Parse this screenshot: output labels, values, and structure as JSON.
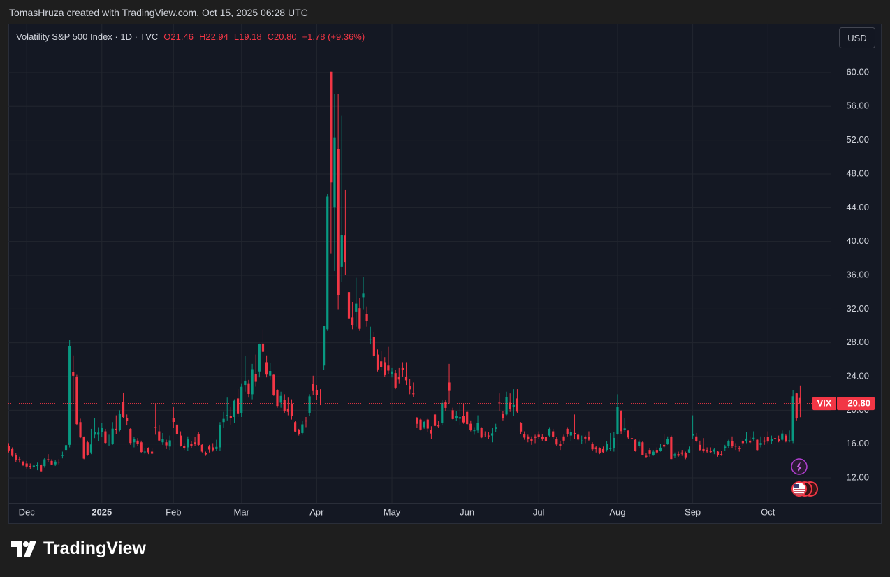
{
  "credit": "TomasHruza created with TradingView.com, Oct 15, 2025 06:28 UTC",
  "brand": "TradingView",
  "currency": "USD",
  "chart_data": {
    "type": "candlestick",
    "title": "Volatility S&P 500 Index · 1D · TVC",
    "legend_values": [
      "O21.46",
      "H22.94",
      "L19.18",
      "C20.80",
      "+1.78 (+9.36%)"
    ],
    "price_tag": {
      "symbol": "VIX",
      "label": "20.80"
    },
    "up_color": "#089981",
    "down_color": "#f23645",
    "grid": true,
    "ylim": [
      9.02,
      65.46
    ],
    "yticks": [
      {
        "value": 12,
        "label": "12.00"
      },
      {
        "value": 16,
        "label": "16.00"
      },
      {
        "value": 20,
        "label": "20.00"
      },
      {
        "value": 24,
        "label": "24.00"
      },
      {
        "value": 28,
        "label": "28.00"
      },
      {
        "value": 32,
        "label": "32.00"
      },
      {
        "value": 36,
        "label": "36.00"
      },
      {
        "value": 40,
        "label": "40.00"
      },
      {
        "value": 44,
        "label": "44.00"
      },
      {
        "value": 48,
        "label": "48.00"
      },
      {
        "value": 52,
        "label": "52.00"
      },
      {
        "value": 56,
        "label": "56.00"
      },
      {
        "value": 60,
        "label": "60.00"
      }
    ],
    "xlim": [
      -0.1,
      229.7
    ],
    "xticks": [
      {
        "value": 5,
        "label": "Dec"
      },
      {
        "value": 26,
        "label": "2025"
      },
      {
        "value": 46,
        "label": "Feb"
      },
      {
        "value": 65,
        "label": "Mar"
      },
      {
        "value": 86,
        "label": "Apr"
      },
      {
        "value": 107,
        "label": "May"
      },
      {
        "value": 128,
        "label": "Jun"
      },
      {
        "value": 148,
        "label": "Jul"
      },
      {
        "value": 170,
        "label": "Aug"
      },
      {
        "value": 191,
        "label": "Sep"
      },
      {
        "value": 212,
        "label": "Oct"
      }
    ],
    "candles": [
      [
        15.8,
        16.1,
        15.0,
        15.24
      ],
      [
        15.4,
        15.6,
        14.5,
        14.6
      ],
      [
        14.7,
        14.9,
        13.9,
        14.1
      ],
      [
        14.2,
        14.5,
        13.8,
        14.1
      ],
      [
        13.9,
        14.0,
        13.4,
        13.51
      ],
      [
        13.7,
        14.0,
        13.1,
        13.34
      ],
      [
        13.4,
        13.7,
        13.0,
        13.3
      ],
      [
        13.3,
        13.6,
        13.0,
        13.45
      ],
      [
        13.4,
        13.8,
        12.9,
        13.54
      ],
      [
        13.5,
        13.7,
        12.7,
        12.77
      ],
      [
        13.4,
        14.4,
        13.2,
        14.19
      ],
      [
        14.2,
        14.8,
        13.9,
        14.18
      ],
      [
        14.0,
        14.2,
        13.5,
        13.58
      ],
      [
        13.6,
        14.1,
        13.4,
        13.92
      ],
      [
        13.9,
        14.2,
        13.6,
        13.81
      ],
      [
        14.6,
        15.1,
        14.3,
        14.69
      ],
      [
        15.3,
        16.2,
        14.9,
        15.87
      ],
      [
        15.9,
        28.3,
        15.6,
        27.62
      ],
      [
        24.5,
        26.5,
        21.0,
        24.09
      ],
      [
        24.0,
        24.2,
        18.2,
        18.36
      ],
      [
        18.6,
        19.0,
        16.7,
        16.78
      ],
      [
        16.8,
        16.9,
        14.2,
        14.27
      ],
      [
        16.2,
        16.4,
        14.6,
        14.73
      ],
      [
        15.0,
        17.8,
        14.8,
        15.95
      ],
      [
        17.1,
        19.1,
        16.7,
        17.4
      ],
      [
        17.1,
        18.0,
        16.3,
        17.35
      ],
      [
        17.4,
        18.5,
        16.8,
        17.93
      ],
      [
        17.5,
        17.8,
        16.0,
        16.13
      ],
      [
        16.0,
        17.1,
        15.8,
        16.04
      ],
      [
        16.0,
        18.6,
        15.9,
        17.82
      ],
      [
        17.8,
        19.4,
        17.2,
        17.7
      ],
      [
        17.7,
        20.0,
        17.5,
        19.54
      ],
      [
        21.0,
        22.1,
        19.1,
        19.19
      ],
      [
        19.1,
        19.5,
        18.2,
        18.71
      ],
      [
        17.8,
        17.9,
        15.9,
        16.12
      ],
      [
        16.2,
        16.8,
        15.6,
        16.6
      ],
      [
        16.4,
        16.7,
        15.8,
        15.97
      ],
      [
        16.2,
        16.4,
        14.9,
        15.06
      ],
      [
        15.1,
        15.5,
        14.8,
        15.1
      ],
      [
        15.5,
        15.6,
        14.8,
        15.02
      ],
      [
        15.1,
        15.5,
        14.8,
        14.85
      ],
      [
        18.0,
        20.8,
        17.1,
        17.9
      ],
      [
        17.5,
        18.2,
        16.3,
        16.41
      ],
      [
        16.2,
        17.3,
        15.9,
        16.56
      ],
      [
        16.2,
        16.5,
        15.4,
        15.84
      ],
      [
        15.7,
        17.0,
        15.3,
        16.43
      ],
      [
        19.1,
        20.4,
        17.9,
        18.62
      ],
      [
        18.3,
        18.4,
        17.0,
        17.21
      ],
      [
        17.0,
        17.5,
        15.7,
        15.77
      ],
      [
        15.8,
        16.1,
        15.3,
        15.5
      ],
      [
        15.6,
        16.9,
        15.2,
        16.54
      ],
      [
        16.0,
        16.3,
        15.5,
        15.81
      ],
      [
        16.2,
        16.8,
        15.8,
        16.02
      ],
      [
        17.2,
        17.4,
        15.8,
        15.89
      ],
      [
        15.9,
        16.0,
        15.0,
        15.1
      ],
      [
        14.9,
        15.1,
        14.6,
        14.77
      ],
      [
        15.7,
        15.9,
        15.0,
        15.35
      ],
      [
        15.6,
        16.1,
        15.1,
        15.27
      ],
      [
        15.4,
        16.5,
        15.2,
        15.66
      ],
      [
        15.6,
        18.6,
        15.2,
        18.21
      ],
      [
        18.6,
        19.8,
        17.9,
        18.98
      ],
      [
        19.3,
        21.5,
        18.8,
        19.43
      ],
      [
        19.3,
        20.4,
        18.3,
        19.1
      ],
      [
        19.2,
        21.3,
        18.5,
        21.13
      ],
      [
        21.4,
        22.5,
        19.2,
        19.63
      ],
      [
        19.7,
        23.2,
        19.2,
        22.78
      ],
      [
        23.0,
        26.4,
        22.2,
        23.51
      ],
      [
        23.2,
        23.6,
        21.5,
        21.93
      ],
      [
        21.9,
        25.5,
        21.3,
        24.87
      ],
      [
        24.3,
        26.6,
        22.8,
        23.37
      ],
      [
        24.6,
        27.9,
        23.9,
        27.86
      ],
      [
        27.9,
        29.6,
        26.0,
        26.92
      ],
      [
        25.7,
        26.5,
        23.9,
        24.23
      ],
      [
        24.1,
        25.6,
        23.6,
        24.66
      ],
      [
        24.2,
        24.3,
        21.7,
        21.77
      ],
      [
        22.4,
        22.5,
        20.3,
        20.51
      ],
      [
        20.9,
        22.2,
        20.3,
        21.7
      ],
      [
        21.2,
        21.9,
        19.7,
        19.9
      ],
      [
        20.2,
        21.5,
        19.4,
        19.8
      ],
      [
        20.8,
        21.3,
        18.9,
        19.28
      ],
      [
        18.6,
        18.7,
        17.4,
        17.48
      ],
      [
        17.7,
        17.8,
        17.0,
        17.15
      ],
      [
        17.3,
        18.7,
        17.1,
        18.33
      ],
      [
        18.8,
        19.2,
        18.0,
        18.69
      ],
      [
        19.7,
        21.9,
        19.3,
        21.65
      ],
      [
        23.1,
        24.1,
        21.8,
        22.28
      ],
      [
        22.4,
        23.0,
        21.2,
        21.77
      ],
      [
        21.6,
        22.5,
        20.6,
        21.51
      ],
      [
        25.3,
        30.0,
        24.8,
        30.02
      ],
      [
        29.6,
        45.6,
        29.4,
        45.31
      ],
      [
        60.1,
        60.1,
        38.6,
        46.98
      ],
      [
        44.0,
        57.5,
        36.5,
        52.33
      ],
      [
        50.9,
        57.5,
        31.9,
        33.62
      ],
      [
        37.0,
        54.9,
        35.2,
        40.72
      ],
      [
        40.7,
        46.1,
        36.0,
        37.56
      ],
      [
        34.0,
        35.0,
        29.9,
        30.89
      ],
      [
        31.0,
        32.8,
        29.6,
        30.12
      ],
      [
        31.7,
        35.7,
        29.9,
        32.64
      ],
      [
        32.1,
        33.3,
        29.4,
        29.65
      ],
      [
        33.4,
        35.8,
        31.9,
        33.82
      ],
      [
        31.4,
        32.3,
        29.9,
        30.57
      ],
      [
        28.4,
        29.9,
        27.8,
        28.45
      ],
      [
        28.7,
        29.3,
        26.2,
        26.47
      ],
      [
        26.6,
        27.2,
        24.6,
        24.84
      ],
      [
        25.8,
        27.0,
        24.7,
        25.15
      ],
      [
        25.7,
        26.3,
        24.0,
        24.17
      ],
      [
        25.3,
        27.5,
        24.3,
        24.7
      ],
      [
        24.3,
        25.0,
        23.9,
        24.6
      ],
      [
        24.4,
        24.8,
        22.5,
        22.68
      ],
      [
        24.0,
        25.0,
        23.2,
        23.64
      ],
      [
        25.0,
        25.7,
        24.0,
        24.76
      ],
      [
        24.0,
        25.7,
        23.0,
        23.55
      ],
      [
        22.9,
        23.7,
        21.9,
        22.48
      ],
      [
        22.0,
        23.3,
        21.6,
        21.9
      ],
      [
        19.1,
        19.2,
        17.9,
        18.39
      ],
      [
        18.9,
        19.0,
        17.6,
        17.72
      ],
      [
        18.0,
        18.8,
        17.8,
        18.62
      ],
      [
        18.9,
        19.0,
        17.4,
        17.83
      ],
      [
        17.7,
        18.1,
        16.6,
        17.24
      ],
      [
        19.5,
        19.9,
        17.9,
        18.14
      ],
      [
        18.2,
        18.7,
        17.9,
        18.09
      ],
      [
        18.5,
        21.2,
        18.2,
        20.87
      ],
      [
        21.0,
        21.2,
        19.9,
        20.28
      ],
      [
        23.3,
        25.5,
        20.8,
        22.29
      ],
      [
        20.0,
        20.3,
        18.9,
        18.96
      ],
      [
        19.1,
        19.9,
        18.7,
        19.31
      ],
      [
        19.0,
        21.0,
        18.2,
        19.18
      ],
      [
        19.3,
        20.7,
        18.4,
        18.57
      ],
      [
        19.8,
        20.0,
        18.3,
        18.36
      ],
      [
        18.4,
        18.8,
        17.5,
        17.69
      ],
      [
        17.6,
        18.0,
        17.1,
        17.61
      ],
      [
        17.6,
        19.4,
        17.3,
        18.48
      ],
      [
        17.9,
        18.0,
        16.7,
        16.77
      ],
      [
        17.2,
        17.5,
        16.8,
        17.16
      ],
      [
        17.0,
        17.4,
        16.6,
        16.95
      ],
      [
        17.0,
        17.9,
        16.2,
        17.26
      ],
      [
        17.8,
        18.4,
        17.4,
        18.02
      ],
      [
        20.9,
        22.0,
        19.9,
        20.82
      ],
      [
        19.6,
        19.9,
        18.8,
        19.11
      ],
      [
        19.5,
        22.2,
        19.4,
        21.6
      ],
      [
        20.9,
        22.0,
        19.8,
        20.14
      ],
      [
        20.4,
        22.5,
        19.3,
        20.62
      ],
      [
        21.4,
        22.5,
        19.7,
        19.83
      ],
      [
        18.5,
        18.6,
        17.2,
        17.48
      ],
      [
        17.2,
        17.5,
        16.5,
        16.76
      ],
      [
        16.9,
        17.1,
        16.2,
        16.59
      ],
      [
        16.6,
        16.9,
        15.9,
        16.32
      ],
      [
        16.9,
        17.1,
        16.1,
        16.73
      ],
      [
        17.1,
        17.5,
        16.6,
        16.83
      ],
      [
        16.8,
        17.2,
        16.4,
        16.64
      ],
      [
        16.8,
        16.9,
        16.2,
        16.38
      ],
      [
        17.0,
        18.0,
        16.8,
        17.79
      ],
      [
        17.5,
        17.8,
        16.6,
        16.81
      ],
      [
        16.6,
        16.8,
        15.8,
        15.94
      ],
      [
        16.0,
        16.4,
        15.3,
        15.78
      ],
      [
        16.9,
        17.1,
        16.0,
        16.4
      ],
      [
        17.8,
        18.0,
        16.9,
        17.2
      ],
      [
        17.0,
        17.8,
        16.3,
        17.38
      ],
      [
        17.3,
        19.5,
        16.6,
        17.16
      ],
      [
        17.1,
        17.4,
        16.3,
        16.52
      ],
      [
        16.3,
        17.0,
        16.0,
        16.41
      ],
      [
        16.8,
        17.0,
        16.1,
        16.65
      ],
      [
        16.8,
        17.5,
        16.3,
        16.5
      ],
      [
        16.0,
        16.2,
        15.2,
        15.37
      ],
      [
        15.6,
        15.8,
        15.0,
        15.39
      ],
      [
        15.5,
        15.6,
        14.8,
        14.93
      ],
      [
        15.4,
        15.7,
        14.9,
        15.03
      ],
      [
        15.3,
        16.3,
        15.1,
        15.98
      ],
      [
        15.4,
        17.3,
        15.2,
        15.48
      ],
      [
        15.5,
        17.4,
        15.1,
        16.72
      ],
      [
        17.2,
        21.9,
        17.1,
        20.38
      ],
      [
        19.9,
        20.0,
        17.2,
        17.52
      ],
      [
        17.7,
        19.1,
        17.4,
        17.85
      ],
      [
        17.6,
        17.6,
        16.6,
        16.77
      ],
      [
        16.7,
        17.9,
        16.3,
        16.57
      ],
      [
        16.5,
        16.6,
        15.1,
        15.15
      ],
      [
        15.8,
        16.5,
        15.5,
        16.25
      ],
      [
        16.2,
        16.3,
        14.7,
        14.73
      ],
      [
        14.6,
        14.9,
        14.4,
        14.49
      ],
      [
        15.3,
        15.5,
        14.5,
        14.83
      ],
      [
        14.7,
        15.3,
        14.6,
        15.09
      ],
      [
        15.3,
        15.6,
        14.8,
        15.0
      ],
      [
        15.2,
        16.0,
        15.1,
        15.57
      ],
      [
        15.9,
        17.2,
        15.5,
        15.69
      ],
      [
        16.0,
        16.9,
        15.9,
        16.6
      ],
      [
        16.8,
        17.0,
        14.2,
        14.22
      ],
      [
        14.6,
        15.0,
        14.4,
        14.79
      ],
      [
        14.8,
        15.1,
        14.5,
        14.62
      ],
      [
        15.0,
        15.3,
        14.6,
        14.85
      ],
      [
        14.9,
        15.1,
        14.2,
        14.43
      ],
      [
        15.0,
        15.7,
        14.9,
        15.36
      ],
      [
        17.0,
        19.4,
        16.6,
        17.17
      ],
      [
        16.9,
        17.3,
        16.2,
        16.35
      ],
      [
        15.9,
        16.4,
        15.2,
        15.3
      ],
      [
        15.4,
        16.7,
        15.0,
        15.18
      ],
      [
        15.3,
        15.6,
        14.9,
        15.11
      ],
      [
        15.2,
        15.6,
        14.9,
        15.04
      ],
      [
        15.1,
        15.5,
        14.8,
        15.35
      ],
      [
        15.1,
        15.2,
        14.5,
        14.71
      ],
      [
        14.8,
        15.2,
        14.6,
        14.76
      ],
      [
        15.5,
        15.9,
        15.2,
        15.69
      ],
      [
        15.8,
        16.5,
        15.5,
        16.36
      ],
      [
        16.3,
        16.9,
        15.5,
        15.72
      ],
      [
        15.8,
        16.1,
        15.3,
        15.7
      ],
      [
        15.5,
        15.8,
        15.1,
        15.45
      ],
      [
        16.3,
        16.5,
        15.8,
        16.1
      ],
      [
        16.3,
        17.4,
        16.1,
        16.64
      ],
      [
        16.4,
        16.9,
        16.0,
        16.18
      ],
      [
        16.6,
        17.5,
        16.4,
        16.74
      ],
      [
        16.5,
        16.6,
        15.2,
        15.29
      ],
      [
        15.9,
        16.9,
        15.6,
        16.12
      ],
      [
        16.4,
        16.8,
        15.9,
        16.28
      ],
      [
        16.8,
        17.5,
        16.1,
        16.29
      ],
      [
        16.3,
        17.0,
        16.0,
        16.63
      ],
      [
        16.7,
        17.1,
        16.2,
        16.65
      ],
      [
        16.6,
        17.0,
        16.2,
        16.37
      ],
      [
        16.5,
        17.6,
        16.3,
        17.24
      ],
      [
        17.0,
        17.2,
        16.2,
        16.3
      ],
      [
        16.3,
        17.6,
        16.2,
        16.43
      ],
      [
        16.4,
        22.4,
        16.1,
        21.66
      ],
      [
        22.0,
        22.1,
        18.8,
        19.03
      ],
      [
        21.46,
        22.94,
        19.18,
        20.8
      ]
    ]
  }
}
